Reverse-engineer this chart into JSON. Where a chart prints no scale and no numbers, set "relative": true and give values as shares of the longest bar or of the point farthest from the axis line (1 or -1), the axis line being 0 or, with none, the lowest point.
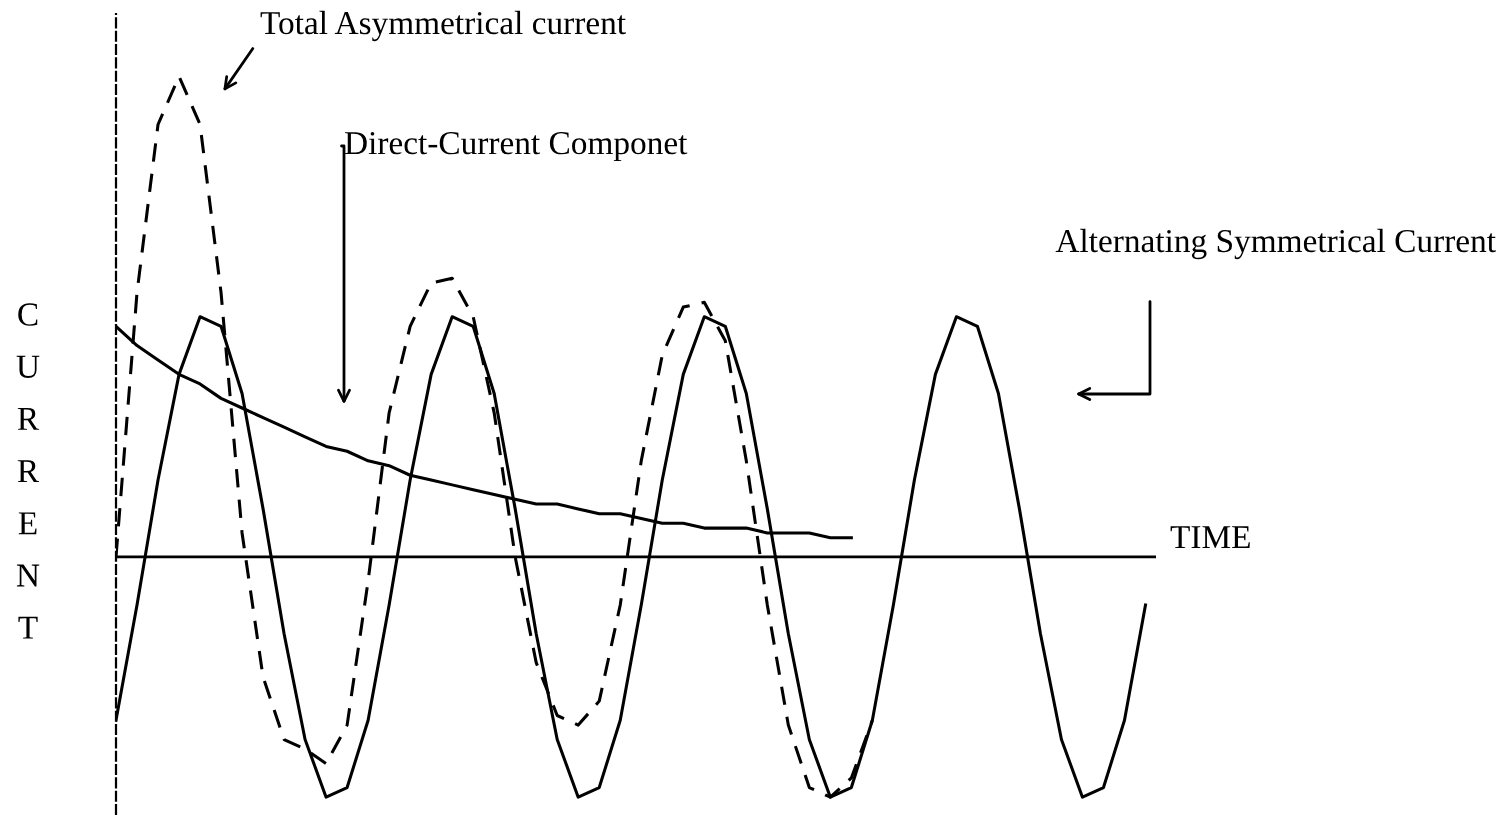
{
  "chart_data": {
    "type": "line",
    "relative": true,
    "xlabel": "TIME",
    "ylabel": "CURRENT",
    "legend": false,
    "categories": [
      null,
      null,
      null,
      null,
      null,
      null,
      null,
      null,
      null,
      null,
      null,
      null,
      null,
      null,
      null,
      null,
      null,
      null,
      null,
      null,
      null,
      null,
      null,
      null,
      null,
      null,
      null,
      null,
      null,
      null,
      null,
      null,
      null,
      null,
      null,
      null,
      null,
      null,
      null,
      null,
      null,
      null,
      null,
      null,
      null,
      null,
      null,
      null,
      null,
      null
    ],
    "series": [
      {
        "name": "Total Asymmetrical current",
        "color": "#000000",
        "line_style": "dashed",
        "values": [
          0.0,
          0.55,
          0.9,
          1.0,
          0.9,
          0.55,
          0.05,
          -0.25,
          -0.38,
          -0.4,
          -0.43,
          -0.35,
          -0.05,
          0.3,
          0.48,
          0.57,
          0.58,
          0.5,
          0.3,
          0.0,
          -0.22,
          -0.33,
          -0.35,
          -0.3,
          -0.1,
          0.2,
          0.42,
          0.52,
          0.53,
          0.45,
          0.2,
          -0.1,
          -0.35,
          -0.48,
          -0.5,
          -0.46,
          -0.34,
          null,
          null,
          null,
          null,
          null,
          null,
          null,
          null,
          null,
          null,
          null,
          null,
          null
        ]
      },
      {
        "name": "Direct-Current Componet",
        "color": "#000000",
        "line_style": "solid",
        "values": [
          0.48,
          0.44,
          0.41,
          0.38,
          0.36,
          0.33,
          0.31,
          0.29,
          0.27,
          0.25,
          0.23,
          0.22,
          0.2,
          0.19,
          0.17,
          0.16,
          0.15,
          0.14,
          0.13,
          0.12,
          0.11,
          0.11,
          0.1,
          0.09,
          0.09,
          0.08,
          0.07,
          0.07,
          0.06,
          0.06,
          0.06,
          0.05,
          0.05,
          0.05,
          0.04,
          0.04,
          null,
          null,
          null,
          null,
          null,
          null,
          null,
          null,
          null,
          null,
          null,
          null,
          null,
          null
        ]
      },
      {
        "name": "Alternating Symmetrical Current",
        "color": "#000000",
        "line_style": "solid",
        "values": [
          -0.34,
          -0.1,
          0.16,
          0.38,
          0.5,
          0.48,
          0.34,
          0.1,
          -0.16,
          -0.38,
          -0.5,
          -0.48,
          -0.34,
          -0.1,
          0.16,
          0.38,
          0.5,
          0.48,
          0.34,
          0.1,
          -0.16,
          -0.38,
          -0.5,
          -0.48,
          -0.34,
          -0.1,
          0.16,
          0.38,
          0.5,
          0.48,
          0.34,
          0.1,
          -0.16,
          -0.38,
          -0.5,
          -0.48,
          -0.34,
          -0.1,
          0.16,
          0.38,
          0.5,
          0.48,
          0.34,
          0.1,
          -0.16,
          -0.38,
          -0.5,
          -0.48,
          -0.34,
          -0.1
        ]
      }
    ]
  }
}
